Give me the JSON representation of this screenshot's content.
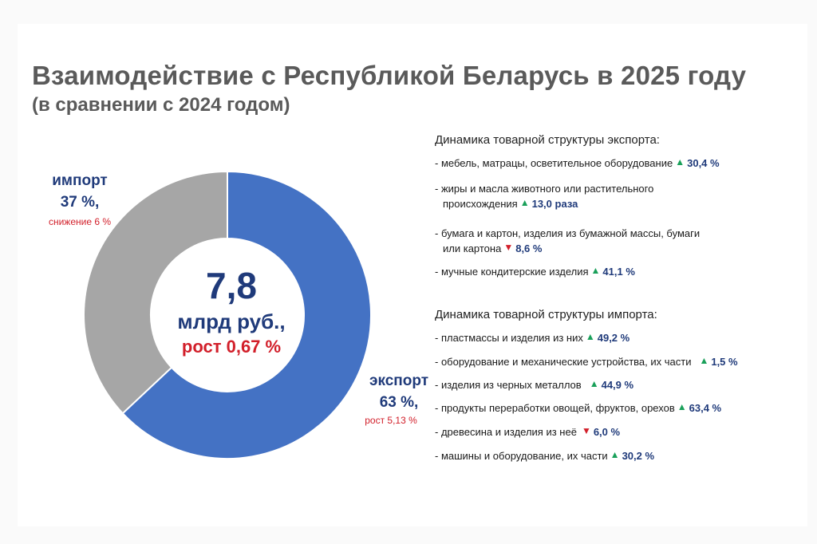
{
  "header": {
    "title": "Взаимодействие с Республикой Беларусь в 2025 году",
    "subtitle": "(в сравнении с 2024 годом)"
  },
  "chart_data": {
    "type": "pie",
    "variant": "donut",
    "slices": [
      {
        "name": "экспорт",
        "value": 63,
        "color": "#4472c4"
      },
      {
        "name": "импорт",
        "value": 37,
        "color": "#a6a6a6"
      }
    ]
  },
  "center": {
    "value": "7,8",
    "unit": "млрд руб.,",
    "growth": "рост 0,67 %"
  },
  "labels": {
    "import": {
      "name": "импорт",
      "pct": "37 %,",
      "note": "снижение 6 %"
    },
    "export": {
      "name": "экспорт",
      "pct": "63 %,",
      "note": "рост 5,13 %"
    }
  },
  "export_structure": {
    "heading": "Динамика товарной структуры экспорта:",
    "items": [
      {
        "line1": "- мебель, матрацы, осветительное оборудование",
        "line2": "",
        "dir": "up",
        "value": "30,4 %"
      },
      {
        "line1": "- жиры и масла животного или растительного",
        "line2": "происхождения",
        "dir": "up",
        "value": "13,0 раза"
      },
      {
        "line1": "- бумага и картон, изделия из бумажной массы, бумаги",
        "line2": "или картона",
        "dir": "down",
        "value": "8,6 %"
      },
      {
        "line1": "- мучные кондитерские изделия",
        "line2": "",
        "dir": "up",
        "value": "41,1 %"
      }
    ]
  },
  "import_structure": {
    "heading": "Динамика товарной структуры импорта:",
    "items": [
      {
        "text": "- пластмассы и изделия из них",
        "dir": "up",
        "value": "49,2 %"
      },
      {
        "text": "- оборудование и механические устройства, их части",
        "dir": "up",
        "value": "1,5 %"
      },
      {
        "text": "- изделия из черных металлов",
        "dir": "up",
        "value": "44,9 %"
      },
      {
        "text": "- продукты переработки овощей, фруктов, орехов",
        "dir": "up",
        "value": "63,4 %"
      },
      {
        "text": "- древесина и изделия из неё",
        "dir": "down",
        "value": "6,0 %"
      },
      {
        "text": "- машины и оборудование, их части",
        "dir": "up",
        "value": "30,2 %"
      }
    ]
  },
  "icons": {
    "up": "arrow-up-icon",
    "down": "arrow-down-icon"
  }
}
